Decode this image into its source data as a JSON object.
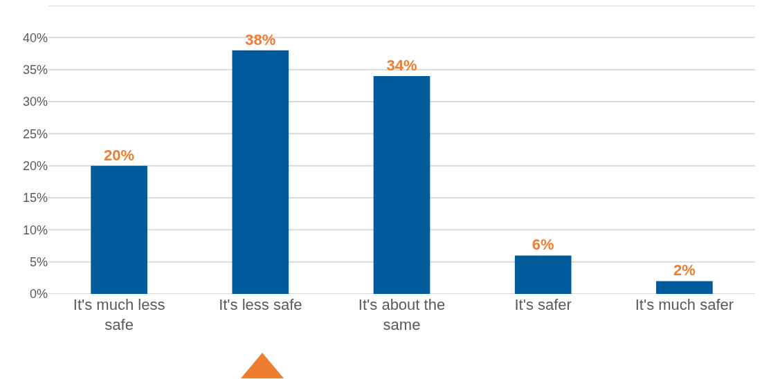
{
  "chart_data": {
    "type": "bar",
    "categories": [
      "It's much less safe",
      "It's less safe",
      "It's about the same",
      "It's safer",
      "It's much safer"
    ],
    "values": [
      20,
      38,
      34,
      6,
      2
    ],
    "value_labels": [
      "20%",
      "38%",
      "34%",
      "6%",
      "2%"
    ],
    "color": "#005b9a",
    "ylim": [
      0,
      45
    ],
    "yticks": [
      {
        "value": 0,
        "label": "0%"
      },
      {
        "value": 5,
        "label": "5%"
      },
      {
        "value": 10,
        "label": "10%"
      },
      {
        "value": 15,
        "label": "15%"
      },
      {
        "value": 20,
        "label": "20%"
      },
      {
        "value": 25,
        "label": "25%"
      },
      {
        "value": 30,
        "label": "30%"
      },
      {
        "value": 35,
        "label": "35%"
      },
      {
        "value": 40,
        "label": "40%"
      },
      {
        "value": 45,
        "label": null
      }
    ],
    "grid": "y"
  }
}
